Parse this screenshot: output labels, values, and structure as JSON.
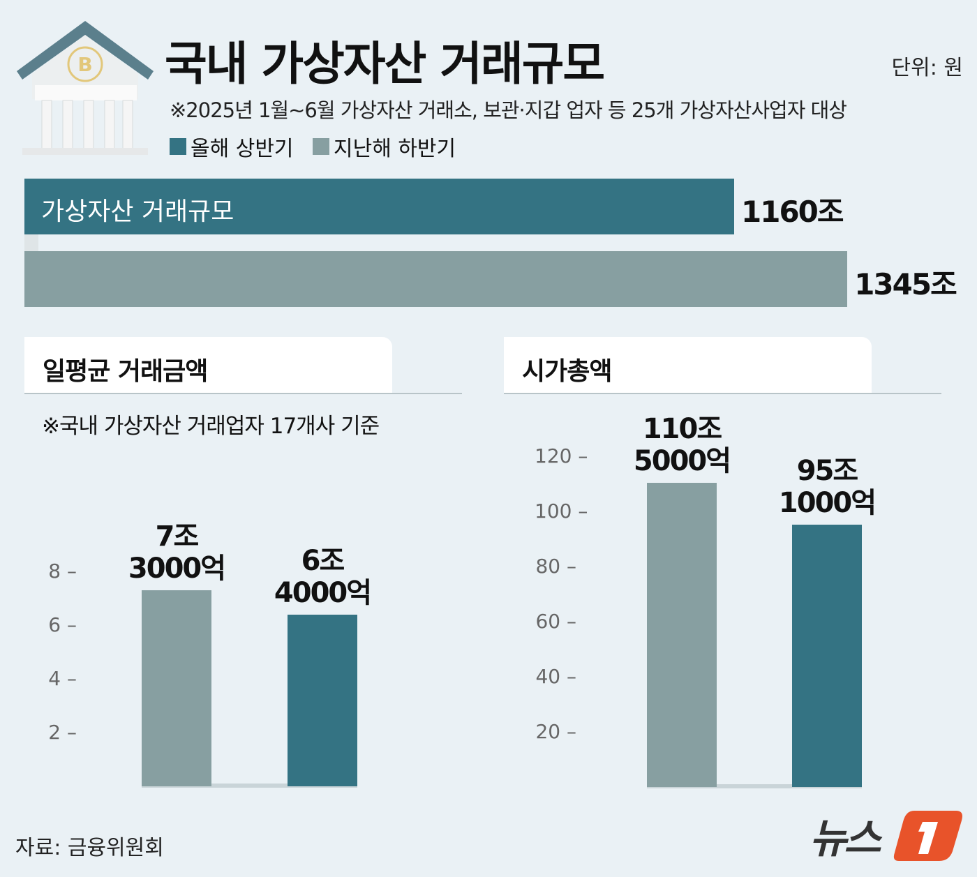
{
  "header": {
    "title": "국내 가상자산 거래규모",
    "unit": "단위: 원",
    "note": "※2025년 1월~6월 가상자산 거래소, 보관·지갑 업자 등 25개 가상자산사업자 대상"
  },
  "colors": {
    "this_half": "#347383",
    "last_half": "#879fa1",
    "background": "#eaf1f5"
  },
  "legend": [
    {
      "label": "올해 상반기",
      "color": "#347383"
    },
    {
      "label": "지난해 하반기",
      "color": "#879fa1"
    }
  ],
  "chart_data": [
    {
      "type": "bar",
      "orientation": "horizontal",
      "title": "가상자산 거래규모",
      "series": [
        {
          "name": "올해 상반기",
          "values": [
            1160
          ],
          "label": "1160조"
        },
        {
          "name": "지난해 하반기",
          "values": [
            1345
          ],
          "label": "1345조"
        }
      ],
      "unit": "조"
    },
    {
      "type": "bar",
      "title": "일평균 거래금액",
      "subtitle": "※국내 가상자산 거래업자 17개사 기준",
      "ticks": [
        2,
        4,
        6,
        8
      ],
      "ylim": [
        0,
        8
      ],
      "unit": "조",
      "bars": [
        {
          "series": "지난해 하반기",
          "value": 7.3,
          "label_line1": "7조",
          "label_line2": "3000억"
        },
        {
          "series": "올해 상반기",
          "value": 6.4,
          "label_line1": "6조",
          "label_line2": "4000억"
        }
      ]
    },
    {
      "type": "bar",
      "title": "시가총액",
      "ticks": [
        20,
        40,
        60,
        80,
        100,
        120
      ],
      "ylim": [
        0,
        120
      ],
      "unit": "조",
      "bars": [
        {
          "series": "지난해 하반기",
          "value": 110.5,
          "label_line1": "110조",
          "label_line2": "5000억"
        },
        {
          "series": "올해 상반기",
          "value": 95.1,
          "label_line1": "95조",
          "label_line2": "1000억"
        }
      ]
    }
  ],
  "source": "자료: 금융위원회",
  "logo": {
    "text": "뉴스1"
  }
}
